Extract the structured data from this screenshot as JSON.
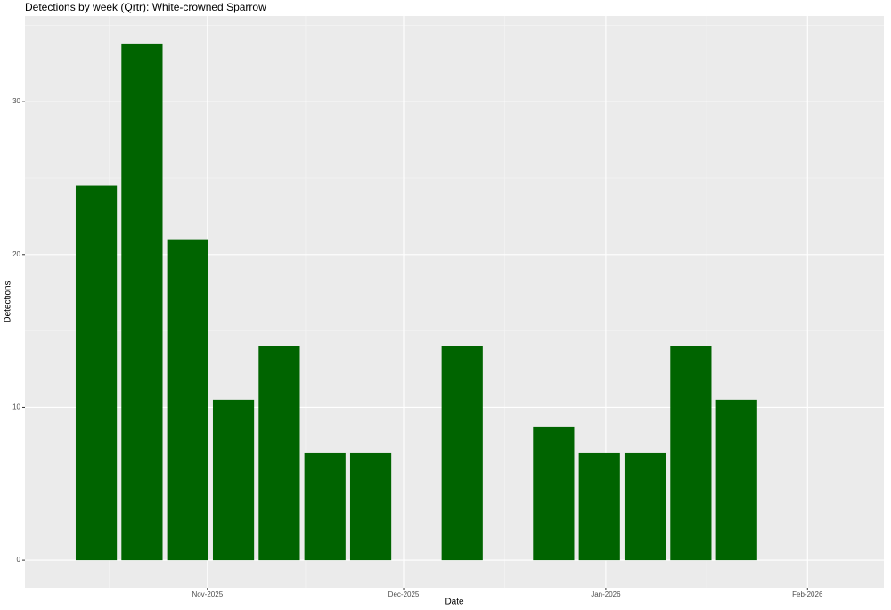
{
  "chart_data": {
    "type": "bar",
    "title": "Detections by week (Qrtr): White-crowned Sparrow",
    "x_label": "Date",
    "y_label": "Detections",
    "categories": [
      null,
      null,
      null,
      null,
      null,
      null,
      null,
      null,
      null,
      null,
      null,
      null,
      null,
      null,
      null
    ],
    "values": [
      24.5,
      33.8,
      21,
      10.5,
      14,
      7,
      7,
      null,
      14,
      null,
      8.75,
      7,
      7,
      14,
      10.5
    ],
    "color": "#006400",
    "xlim": [
      -1.56,
      17.22
    ],
    "xticks": [
      {
        "value": 2.43,
        "label": "Nov-2025"
      },
      {
        "value": 6.72,
        "label": "Dec-2025"
      },
      {
        "value": 11.14,
        "label": "Jan-2026"
      },
      {
        "value": 15.55,
        "label": "Feb-2026"
      }
    ],
    "ylim": [
      -1.8,
      35.6
    ],
    "yticks": [
      0,
      10,
      20,
      30
    ],
    "grid": true
  }
}
